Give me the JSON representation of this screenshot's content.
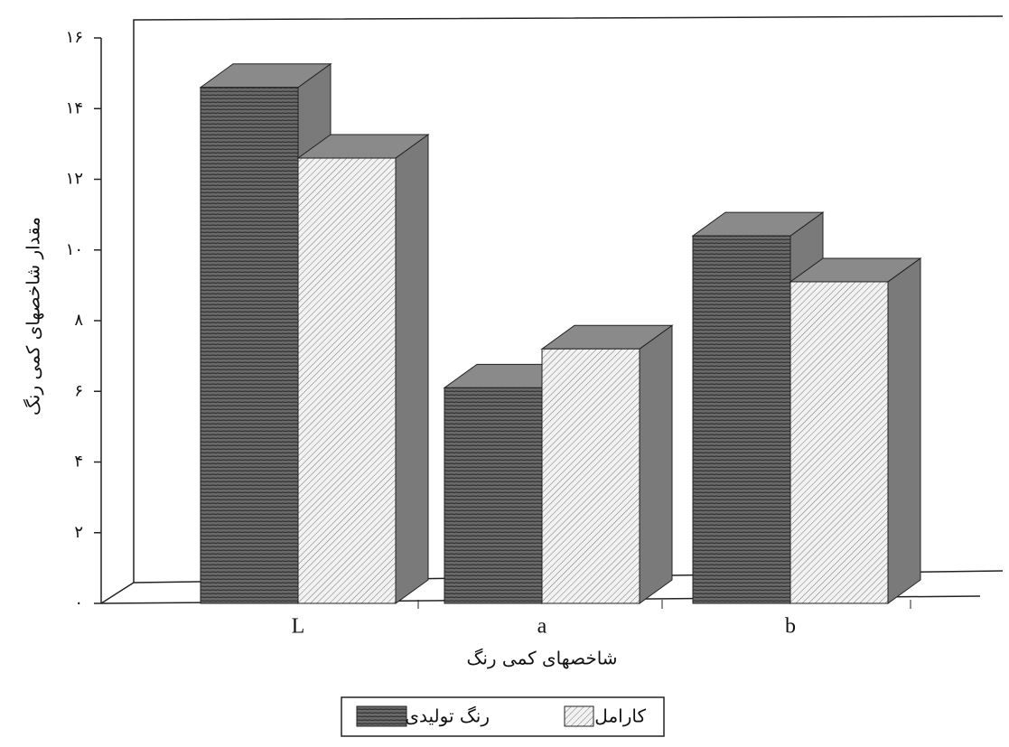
{
  "chart_data": {
    "type": "bar3d",
    "y_label": "مقدار شاخصهای کمی رنگ",
    "x_label": "شاخصهای کمی رنگ",
    "categories": [
      "L",
      "a",
      "b"
    ],
    "series": [
      {
        "name": "رنگ تولیدی",
        "color": "#5a5a5a",
        "values": [
          14.6,
          6.1,
          10.4
        ]
      },
      {
        "name": "کارامل",
        "color": "#e8e8e8",
        "values": [
          12.6,
          7.2,
          9.1
        ]
      }
    ],
    "ylim": [
      0,
      16
    ],
    "yticks": [
      {
        "value": 0,
        "label": "۰"
      },
      {
        "value": 2,
        "label": "۲"
      },
      {
        "value": 4,
        "label": "۴"
      },
      {
        "value": 6,
        "label": "۶"
      },
      {
        "value": 8,
        "label": "۸"
      },
      {
        "value": 10,
        "label": "۱۰"
      },
      {
        "value": 12,
        "label": "۱۲"
      },
      {
        "value": 14,
        "label": "۱۴"
      },
      {
        "value": 16,
        "label": "۱۶"
      }
    ]
  }
}
